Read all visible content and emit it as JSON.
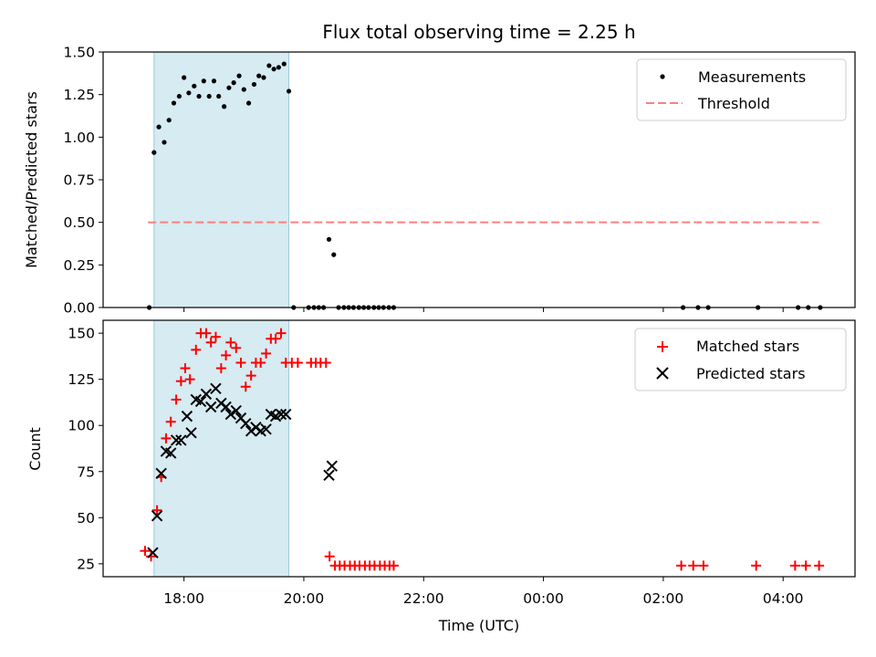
{
  "chart_data": [
    {
      "type": "scatter",
      "title": "Flux total observing time = 2.25 h",
      "xlabel": "",
      "ylabel": "Matched/Predicted stars",
      "ylim": [
        0,
        1.5
      ],
      "yticks": [
        "0.00",
        "0.25",
        "0.50",
        "0.75",
        "1.00",
        "1.25",
        "1.50"
      ],
      "x_units": "hours since 00:00 of first day (UTC)",
      "xlim": [
        16.65,
        29.2
      ],
      "shaded_span": [
        17.5,
        19.75
      ],
      "threshold": {
        "label": "Threshold",
        "value": 0.5,
        "x_range": [
          17.4,
          28.6
        ],
        "color": "#ff7f7f"
      },
      "legend": [
        "Measurements",
        "Threshold"
      ],
      "legend_position": "upper right",
      "series": [
        {
          "name": "Measurements",
          "color": "#000000",
          "x": [
            17.42,
            17.5,
            17.58,
            17.67,
            17.75,
            17.83,
            17.92,
            18.0,
            18.08,
            18.17,
            18.25,
            18.33,
            18.42,
            18.5,
            18.58,
            18.67,
            18.75,
            18.83,
            18.92,
            19.0,
            19.08,
            19.17,
            19.25,
            19.33,
            19.42,
            19.5,
            19.58,
            19.67,
            19.75,
            19.83,
            20.08,
            20.17,
            20.25,
            20.33,
            20.42,
            20.5,
            20.58,
            20.67,
            20.75,
            20.83,
            20.92,
            21.0,
            21.08,
            21.17,
            21.25,
            21.33,
            21.42,
            21.5,
            26.33,
            26.58,
            26.75,
            27.58,
            28.25,
            28.42,
            28.62
          ],
          "y": [
            0.0,
            0.91,
            1.06,
            0.97,
            1.1,
            1.2,
            1.24,
            1.35,
            1.26,
            1.3,
            1.24,
            1.33,
            1.24,
            1.33,
            1.24,
            1.18,
            1.29,
            1.32,
            1.36,
            1.28,
            1.2,
            1.31,
            1.36,
            1.35,
            1.42,
            1.4,
            1.41,
            1.43,
            1.27,
            0.0,
            0.0,
            0.0,
            0.0,
            0.0,
            0.4,
            0.31,
            0.0,
            0.0,
            0.0,
            0.0,
            0.0,
            0.0,
            0.0,
            0.0,
            0.0,
            0.0,
            0.0,
            0.0,
            0.0,
            0.0,
            0.0,
            0.0,
            0.0,
            0.0,
            0.0
          ]
        }
      ]
    },
    {
      "type": "scatter",
      "title": "",
      "xlabel": "Time (UTC)",
      "ylabel": "Count",
      "ylim": [
        18,
        157
      ],
      "yticks": [
        "25",
        "50",
        "75",
        "100",
        "125",
        "150"
      ],
      "xticks": [
        "18:00",
        "20:00",
        "22:00",
        "00:00",
        "02:00",
        "04:00"
      ],
      "xtick_values": [
        18,
        20,
        22,
        24,
        26,
        28
      ],
      "x_units": "hours since 00:00 of first day (UTC)",
      "xlim": [
        16.65,
        29.2
      ],
      "shaded_span": [
        17.5,
        19.75
      ],
      "legend": [
        "Matched stars",
        "Predicted stars"
      ],
      "legend_position": "upper right",
      "series": [
        {
          "name": "Matched stars",
          "marker": "plus",
          "color": "#ff0000",
          "x": [
            17.35,
            17.45,
            17.55,
            17.62,
            17.7,
            17.78,
            17.87,
            17.95,
            18.02,
            18.1,
            18.2,
            18.28,
            18.37,
            18.45,
            18.53,
            18.62,
            18.7,
            18.78,
            18.87,
            18.95,
            19.03,
            19.12,
            19.2,
            19.28,
            19.37,
            19.45,
            19.53,
            19.62,
            19.7,
            19.8,
            19.9,
            20.12,
            20.2,
            20.28,
            20.37,
            20.43,
            20.52,
            20.6,
            20.68,
            20.77,
            20.85,
            20.93,
            21.02,
            21.1,
            21.18,
            21.27,
            21.35,
            21.43,
            21.5,
            26.3,
            26.5,
            26.67,
            27.55,
            28.2,
            28.38,
            28.6
          ],
          "y": [
            32,
            29,
            54,
            72,
            93,
            102,
            114,
            124,
            131,
            125,
            141,
            150,
            150,
            145,
            148,
            131,
            138,
            145,
            142,
            134,
            121,
            127,
            134,
            134,
            139,
            147,
            147,
            150,
            134,
            134,
            134,
            134,
            134,
            134,
            134,
            29,
            24,
            24,
            24,
            24,
            24,
            24,
            24,
            24,
            24,
            24,
            24,
            24,
            24,
            24,
            24,
            24,
            24,
            24,
            24,
            24
          ]
        },
        {
          "name": "Predicted stars",
          "marker": "x",
          "color": "#000000",
          "x": [
            17.48,
            17.55,
            17.62,
            17.7,
            17.78,
            17.87,
            17.95,
            18.05,
            18.12,
            18.2,
            18.28,
            18.37,
            18.45,
            18.53,
            18.62,
            18.7,
            18.78,
            18.87,
            18.95,
            19.03,
            19.12,
            19.2,
            19.28,
            19.37,
            19.45,
            19.53,
            19.62,
            19.7,
            20.42,
            20.47
          ],
          "y": [
            31,
            51,
            74,
            86,
            85,
            92,
            92,
            105,
            96,
            114,
            113,
            117,
            110,
            120,
            112,
            110,
            106,
            108,
            104,
            101,
            97,
            99,
            97,
            98,
            106,
            105,
            106,
            106,
            73,
            78
          ]
        }
      ]
    }
  ]
}
